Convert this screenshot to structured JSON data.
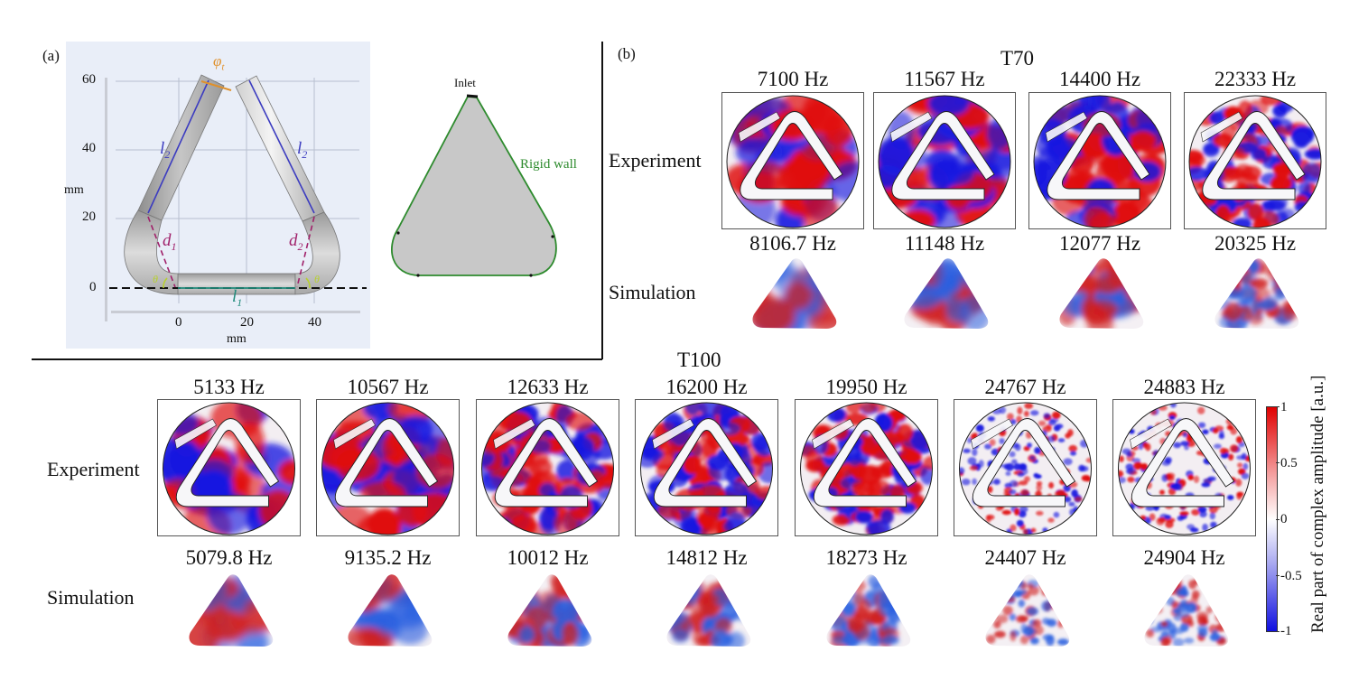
{
  "panel_a": {
    "label": "(a)",
    "geometry_plot": {
      "y_ticks": [
        "60",
        "40",
        "20",
        "0"
      ],
      "x_ticks": [
        "0",
        "20",
        "40"
      ],
      "y_unit": "mm",
      "x_unit": "mm",
      "annotations": {
        "phi": "φ",
        "phi_sub": "t",
        "l2_left": "l",
        "l2_left_sub": "2",
        "l2_right": "l",
        "l2_right_sub": "2",
        "d1": "d",
        "d1_sub": "1",
        "d2": "d",
        "d2_sub": "2",
        "l1": "l",
        "l1_sub": "1",
        "theta_left": "θ",
        "theta_right": "θ"
      }
    },
    "boundary_diagram": {
      "inlet_label": "Inlet",
      "wall_label": "Rigid wall"
    },
    "colors": {
      "background": "#e9eef8",
      "tube": "#b9b9b9",
      "l2_arrow": "#3c3cc0",
      "d_arrow": "#a0206a",
      "l1_arrow": "#1f8a7a",
      "phi_arrow": "#e0902a",
      "theta": "#b8d030",
      "wall": "#2e8b2e",
      "domain_fill": "#c8c8c8"
    }
  },
  "panel_b": {
    "label": "(b)",
    "title": "T70",
    "row_labels": {
      "experiment": "Experiment",
      "simulation": "Simulation"
    },
    "experiment_freqs": [
      "7100 Hz",
      "11567 Hz",
      "14400 Hz",
      "22333 Hz"
    ],
    "simulation_freqs": [
      "8106.7 Hz",
      "11148 Hz",
      "12077 Hz",
      "20325 Hz"
    ]
  },
  "panel_c": {
    "title": "T100",
    "row_labels": {
      "experiment": "Experiment",
      "simulation": "Simulation"
    },
    "experiment_freqs": [
      "5133 Hz",
      "10567 Hz",
      "12633 Hz",
      "16200 Hz",
      "19950 Hz",
      "24767 Hz",
      "24883 Hz"
    ],
    "simulation_freqs": [
      "5079.8 Hz",
      "9135.2 Hz",
      "10012 Hz",
      "14812 Hz",
      "18273 Hz",
      "24407 Hz",
      "24904 Hz"
    ]
  },
  "colorbar": {
    "title": "Real part of complex amplitude [a.u.]",
    "ticks": [
      "1",
      "0.5",
      "0",
      "-0.5",
      "-1"
    ],
    "range": [
      -1,
      1
    ],
    "colors": {
      "max": "#e00000",
      "mid": "#ffffff",
      "min": "#1010e0"
    }
  }
}
